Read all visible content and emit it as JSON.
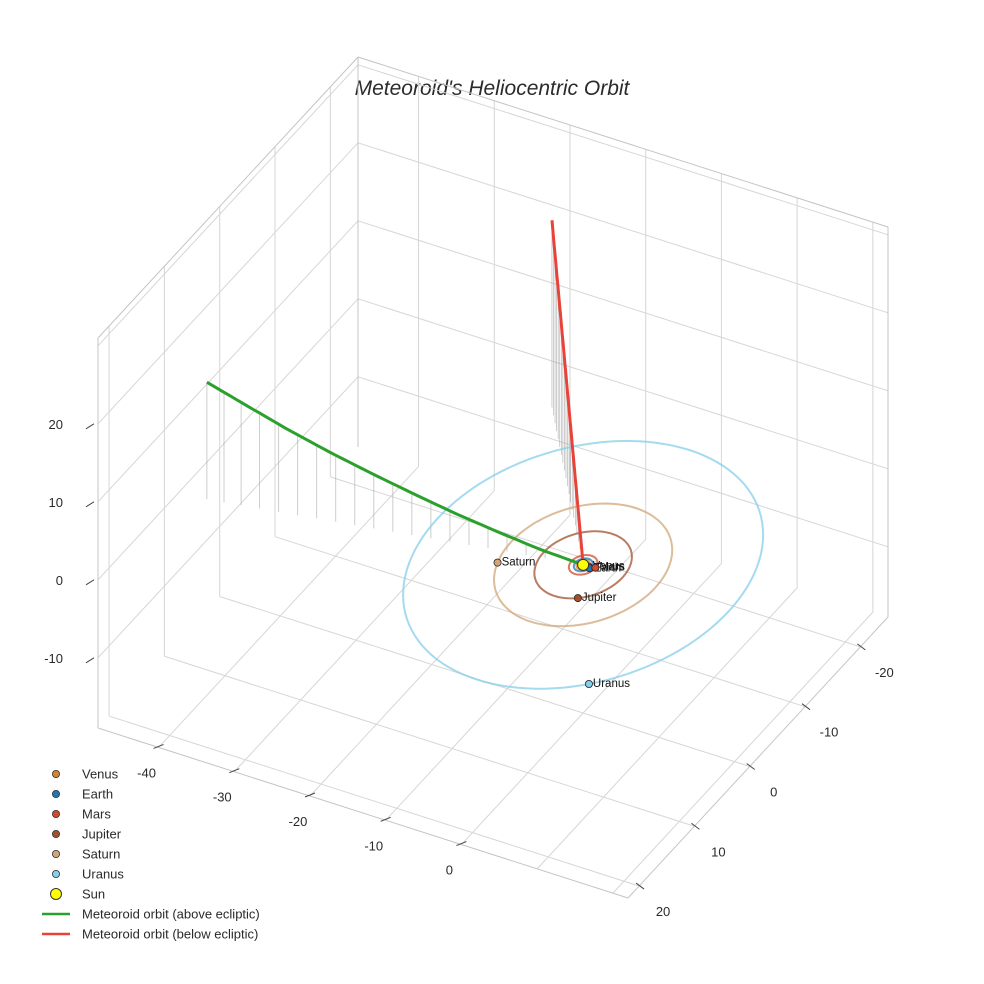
{
  "chart_data": {
    "type": "3d-line-scatter",
    "title": "Meteoroid's Heliocentric Orbit",
    "axes": {
      "x": {
        "range": [
          -48,
          22
        ],
        "ticks": [
          -40,
          -30,
          -20,
          -10,
          0
        ],
        "label": ""
      },
      "y": {
        "range": [
          -25,
          22
        ],
        "ticks": [
          -20,
          -10,
          0,
          10,
          20
        ],
        "label": ""
      },
      "z": {
        "range": [
          -19,
          31
        ],
        "ticks": [
          -10,
          0,
          10,
          20
        ],
        "label": ""
      }
    },
    "grid": true,
    "sun": {
      "name": "Sun",
      "x": 0,
      "y": 0,
      "z": 0,
      "color": "#ffff00"
    },
    "planets": [
      {
        "name": "Venus",
        "a": 0.72,
        "theta_deg": 0,
        "color": "#d4842f",
        "orbit_color": "#d4842f"
      },
      {
        "name": "Earth",
        "a": 1.0,
        "theta_deg": 10,
        "color": "#1f77b4",
        "orbit_color": "#1f77b4"
      },
      {
        "name": "Mars",
        "a": 1.52,
        "theta_deg": -5,
        "color": "#d24a2a",
        "orbit_color": "#d24a2a"
      },
      {
        "name": "Jupiter",
        "a": 5.2,
        "theta_deg": 60,
        "color": "#a0522d",
        "orbit_color": "#a0522d"
      },
      {
        "name": "Saturn",
        "a": 9.5,
        "theta_deg": 160,
        "color": "#d2a679",
        "orbit_color": "#d2a679"
      },
      {
        "name": "Uranus",
        "a": 19.2,
        "theta_deg": 52,
        "color": "#87ceeb",
        "orbit_color": "#87ceeb"
      }
    ],
    "meteoroid_orbit": {
      "above": {
        "name": "Meteoroid orbit (above ecliptic)",
        "color": "#2ca02c",
        "x": [
          0,
          -5,
          -10,
          -15,
          -20,
          -25,
          -30,
          -35,
          -40,
          -44.5
        ],
        "y": [
          0,
          0.8,
          1.6,
          2.4,
          3.2,
          4.0,
          4.8,
          5.6,
          6.4,
          7.1
        ],
        "z": [
          0,
          1.0,
          2.3,
          3.7,
          5.3,
          7.0,
          8.8,
          10.8,
          13.0,
          15.0
        ]
      },
      "below": {
        "name": "Meteoroid orbit (below ecliptic)",
        "color": "#e8433a",
        "x": [
          0,
          -1.8,
          -3.6,
          -5.4,
          -7.2,
          -9.0,
          -10.8,
          -12.6,
          -14.4,
          -16.2,
          -18.0
        ],
        "y": [
          0,
          -1.9,
          -3.8,
          -5.7,
          -7.6,
          -9.5,
          -11.4,
          -13.3,
          -15.2,
          -17.1,
          -19.0
        ],
        "z": [
          0,
          2.4,
          4.8,
          7.2,
          9.6,
          12.0,
          14.4,
          16.8,
          19.2,
          21.6,
          24.0
        ]
      },
      "drop_lines": true
    },
    "legend": {
      "position": "bottom-left",
      "entries": [
        {
          "label": "Venus",
          "kind": "marker",
          "color": "#d4842f"
        },
        {
          "label": "Earth",
          "kind": "marker",
          "color": "#1f77b4"
        },
        {
          "label": "Mars",
          "kind": "marker",
          "color": "#d24a2a"
        },
        {
          "label": "Jupiter",
          "kind": "marker",
          "color": "#a0522d"
        },
        {
          "label": "Saturn",
          "kind": "marker",
          "color": "#d2a679"
        },
        {
          "label": "Uranus",
          "kind": "marker",
          "color": "#87ceeb"
        },
        {
          "label": "Sun",
          "kind": "big-marker",
          "color": "#ffff00"
        },
        {
          "label": "Meteoroid orbit (above ecliptic)",
          "kind": "line",
          "color": "#2ca02c"
        },
        {
          "label": "Meteoroid orbit (below ecliptic)",
          "kind": "line",
          "color": "#e8433a"
        }
      ]
    }
  }
}
